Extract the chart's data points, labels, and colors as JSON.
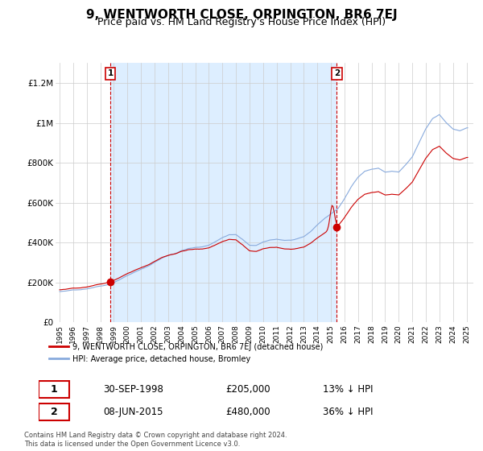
{
  "title": "9, WENTWORTH CLOSE, ORPINGTON, BR6 7EJ",
  "subtitle": "Price paid vs. HM Land Registry's House Price Index (HPI)",
  "title_fontsize": 11,
  "subtitle_fontsize": 9,
  "background_color": "#ffffff",
  "plot_bg_color": "#ffffff",
  "shaded_color": "#ddeeff",
  "grid_color": "#cccccc",
  "red_color": "#cc0000",
  "blue_color": "#88aadd",
  "ylim": [
    0,
    1300000
  ],
  "yticks": [
    0,
    200000,
    400000,
    600000,
    800000,
    1000000,
    1200000
  ],
  "ytick_labels": [
    "£0",
    "£200K",
    "£400K",
    "£600K",
    "£800K",
    "£1M",
    "£1.2M"
  ],
  "sale1_year": 1998.75,
  "sale1_price": 205000,
  "sale1_label": "1",
  "sale1_date": "30-SEP-1998",
  "sale1_hpi_diff": "13% ↓ HPI",
  "sale2_year": 2015.44,
  "sale2_price": 480000,
  "sale2_label": "2",
  "sale2_date": "08-JUN-2015",
  "sale2_hpi_diff": "36% ↓ HPI",
  "legend_label_red": "9, WENTWORTH CLOSE, ORPINGTON, BR6 7EJ (detached house)",
  "legend_label_blue": "HPI: Average price, detached house, Bromley",
  "footer": "Contains HM Land Registry data © Crown copyright and database right 2024.\nThis data is licensed under the Open Government Licence v3.0.",
  "xlim_left": 1994.7,
  "xlim_right": 2025.5
}
